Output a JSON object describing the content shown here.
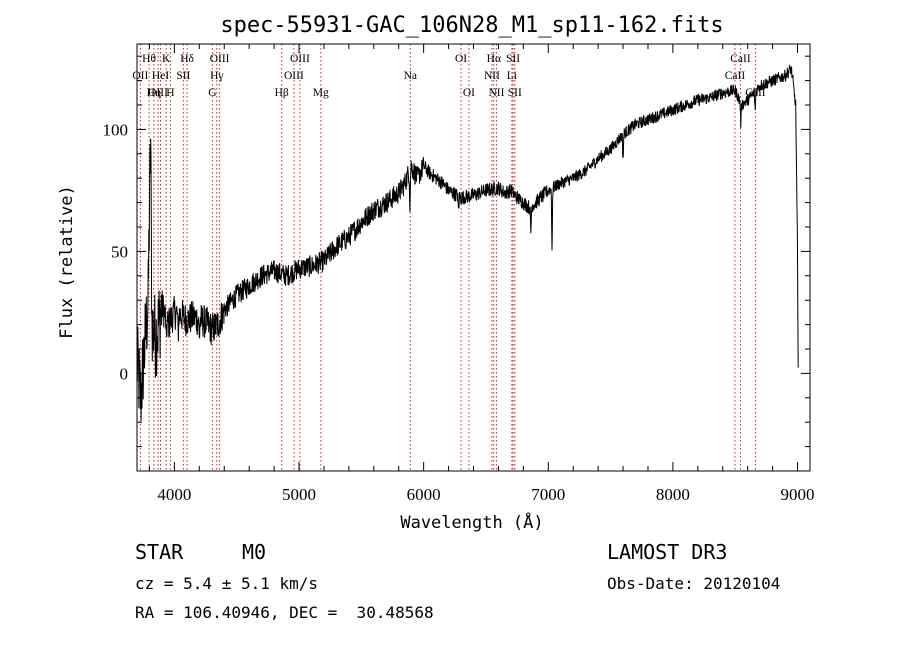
{
  "chart_data": {
    "type": "line",
    "title": "spec-55931-GAC_106N28_M1_sp11-162.fits",
    "xlabel": "Wavelength (Å)",
    "ylabel": "Flux (relative)",
    "xlim": [
      3700,
      9100
    ],
    "ylim": [
      -40,
      135
    ],
    "x_ticks": [
      4000,
      5000,
      6000,
      7000,
      8000,
      9000
    ],
    "y_ticks": [
      0,
      50,
      100
    ],
    "grid": false,
    "color": "#000000",
    "line_color": "#cc2222",
    "series": [
      {
        "name": "flux",
        "points": [
          [
            3700,
            5
          ],
          [
            3730,
            -10
          ],
          [
            3760,
            10
          ],
          [
            3790,
            30
          ],
          [
            3800,
            70
          ],
          [
            3810,
            95
          ],
          [
            3820,
            20
          ],
          [
            3850,
            15
          ],
          [
            3880,
            22
          ],
          [
            3900,
            28
          ],
          [
            3950,
            20
          ],
          [
            4000,
            25
          ],
          [
            4050,
            24
          ],
          [
            4100,
            22
          ],
          [
            4150,
            23
          ],
          [
            4200,
            22
          ],
          [
            4250,
            21
          ],
          [
            4300,
            18
          ],
          [
            4350,
            20
          ],
          [
            4400,
            26
          ],
          [
            4500,
            32
          ],
          [
            4600,
            36
          ],
          [
            4700,
            40
          ],
          [
            4800,
            42
          ],
          [
            4900,
            40
          ],
          [
            5000,
            43
          ],
          [
            5100,
            44
          ],
          [
            5200,
            46
          ],
          [
            5300,
            52
          ],
          [
            5400,
            56
          ],
          [
            5500,
            62
          ],
          [
            5600,
            67
          ],
          [
            5700,
            70
          ],
          [
            5800,
            74
          ],
          [
            5850,
            78
          ],
          [
            5900,
            85
          ],
          [
            5950,
            80
          ],
          [
            6000,
            85
          ],
          [
            6050,
            82
          ],
          [
            6100,
            80
          ],
          [
            6150,
            78
          ],
          [
            6200,
            75
          ],
          [
            6300,
            72
          ],
          [
            6400,
            73
          ],
          [
            6500,
            75
          ],
          [
            6600,
            76
          ],
          [
            6650,
            74
          ],
          [
            6700,
            75
          ],
          [
            6750,
            72
          ],
          [
            6800,
            70
          ],
          [
            6850,
            68
          ],
          [
            6900,
            70
          ],
          [
            7000,
            75
          ],
          [
            7100,
            78
          ],
          [
            7200,
            80
          ],
          [
            7300,
            83
          ],
          [
            7400,
            88
          ],
          [
            7500,
            92
          ],
          [
            7600,
            98
          ],
          [
            7700,
            102
          ],
          [
            7800,
            104
          ],
          [
            7900,
            106
          ],
          [
            8000,
            108
          ],
          [
            8100,
            110
          ],
          [
            8200,
            112
          ],
          [
            8300,
            113
          ],
          [
            8400,
            115
          ],
          [
            8500,
            116
          ],
          [
            8550,
            110
          ],
          [
            8600,
            112
          ],
          [
            8700,
            118
          ],
          [
            8800,
            120
          ],
          [
            8900,
            122
          ],
          [
            8950,
            125
          ],
          [
            8985,
            110
          ],
          [
            9000,
            50
          ],
          [
            9005,
            0
          ]
        ]
      }
    ],
    "absorption_features": [
      {
        "wavelength": 3935,
        "depth": 10
      },
      {
        "wavelength": 4030,
        "depth": 9
      },
      {
        "wavelength": 4200,
        "depth": 8
      },
      {
        "wavelength": 5890,
        "depth": 14
      },
      {
        "wavelength": 6280,
        "depth": 6
      },
      {
        "wavelength": 6860,
        "depth": 12
      },
      {
        "wavelength": 7030,
        "depth": 25
      },
      {
        "wavelength": 7600,
        "depth": 10
      },
      {
        "wavelength": 8545,
        "depth": 8
      },
      {
        "wavelength": 8660,
        "depth": 8
      }
    ],
    "lines": [
      {
        "label": "Hθ",
        "wavelength": 3797,
        "row": 1
      },
      {
        "label": "OII",
        "wavelength": 3727,
        "row": 2
      },
      {
        "label": "OIII",
        "wavelength": 3869,
        "row": 3
      },
      {
        "label": "HeI",
        "wavelength": 3889,
        "row": 2
      },
      {
        "label": "Hη",
        "wavelength": 3835,
        "row": 3
      },
      {
        "label": "K",
        "wavelength": 3934,
        "row": 1
      },
      {
        "label": "SII",
        "wavelength": 4072,
        "row": 2
      },
      {
        "label": "H",
        "wavelength": 3968,
        "row": 3
      },
      {
        "label": "Hδ",
        "wavelength": 4102,
        "row": 1
      },
      {
        "label": "OIII",
        "wavelength": 4363,
        "row": 1
      },
      {
        "label": "Hγ",
        "wavelength": 4340,
        "row": 2
      },
      {
        "label": "G",
        "wavelength": 4305,
        "row": 3
      },
      {
        "label": "Hβ",
        "wavelength": 4861,
        "row": 3
      },
      {
        "label": "OIII",
        "wavelength": 5007,
        "row": 1
      },
      {
        "label": "OIII",
        "wavelength": 4959,
        "row": 2
      },
      {
        "label": "Mg",
        "wavelength": 5175,
        "row": 3
      },
      {
        "label": "Na",
        "wavelength": 5893,
        "row": 2
      },
      {
        "label": "OI",
        "wavelength": 6300,
        "row": 1
      },
      {
        "label": "OI",
        "wavelength": 6363,
        "row": 3
      },
      {
        "label": "Hα",
        "wavelength": 6563,
        "row": 1
      },
      {
        "label": "NII",
        "wavelength": 6548,
        "row": 2
      },
      {
        "label": "NII",
        "wavelength": 6584,
        "row": 3
      },
      {
        "label": "SII",
        "wavelength": 6717,
        "row": 1
      },
      {
        "label": "Li",
        "wavelength": 6708,
        "row": 2
      },
      {
        "label": "SII",
        "wavelength": 6731,
        "row": 3
      },
      {
        "label": "CaII",
        "wavelength": 8542,
        "row": 1
      },
      {
        "label": "CaII",
        "wavelength": 8498,
        "row": 2
      },
      {
        "label": "CaII",
        "wavelength": 8662,
        "row": 3
      }
    ]
  },
  "info": {
    "object_class": "STAR",
    "subclass": "M0",
    "survey": "LAMOST DR3",
    "cz": "cz = 5.4 ± 5.1 km/s",
    "obs_date": "Obs-Date: 20120104",
    "coords": "RA = 106.40946, DEC =  30.48568"
  }
}
